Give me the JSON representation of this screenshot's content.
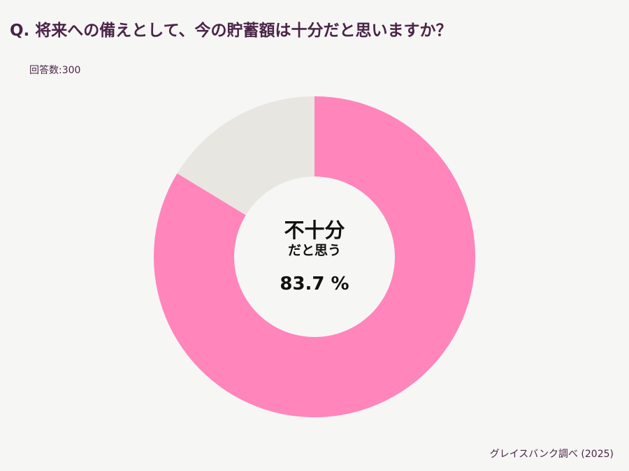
{
  "chart_data": {
    "type": "donut",
    "title": "Q. 将来への備えとして、今の貯蓄額は十分だと思いますか？",
    "subtitle": "回答数:300",
    "source": "グレイスバンク調べ (2025)",
    "categories": [
      "不十分\nだと思う",
      null
    ],
    "values": [
      83.7,
      16.3
    ],
    "value_labels": [
      "83.7 %",
      null
    ],
    "colors": [
      "#ff85bb",
      "#e8e6e0"
    ]
  }
}
